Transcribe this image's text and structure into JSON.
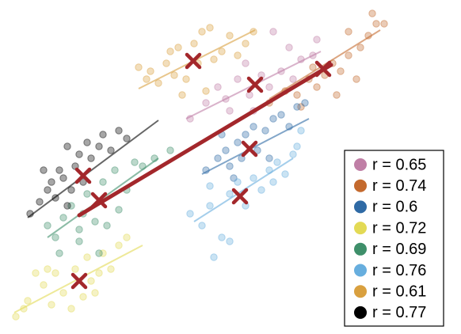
{
  "chart_data": {
    "type": "scatter",
    "xlim": [
      0,
      582
    ],
    "ylim": [
      0,
      422
    ],
    "legend": "lower right",
    "series": [
      {
        "name": "r = 0.65",
        "color": "#c07fa6",
        "x": [
          240,
          260,
          285,
          300,
          315,
          330,
          340,
          355,
          370,
          380,
          395,
          400,
          320,
          290,
          345,
          365,
          310,
          275
        ],
        "y": [
          272,
          292,
          297,
          322,
          302,
          327,
          312,
          332,
          322,
          347,
          352,
          372,
          282,
          282,
          382,
          362,
          342,
          312
        ],
        "fit_x": [
          235,
          405
        ],
        "fit_y": [
          272,
          357
        ],
        "mean_x": 322,
        "mean_y": 315
      },
      {
        "name": "r = 0.74",
        "color": "#c46a2e",
        "x": [
          340,
          360,
          375,
          390,
          400,
          410,
          420,
          430,
          440,
          455,
          465,
          475,
          485,
          470,
          380,
          425,
          450,
          395,
          440
        ],
        "y": [
          292,
          307,
          302,
          322,
          312,
          327,
          342,
          332,
          352,
          362,
          377,
          392,
          392,
          405,
          287,
          302,
          322,
          337,
          382
        ],
        "fit_x": [
          340,
          480
        ],
        "fit_y": [
          297,
          384
        ],
        "mean_x": 408,
        "mean_y": 335
      },
      {
        "name": "r = 0.6",
        "color": "#2f6aa5",
        "x": [
          260,
          275,
          285,
          290,
          300,
          305,
          310,
          320,
          325,
          335,
          345,
          355,
          365,
          375,
          385,
          295,
          280,
          340
        ],
        "y": [
          207,
          222,
          232,
          212,
          242,
          222,
          252,
          262,
          232,
          257,
          272,
          277,
          262,
          287,
          292,
          197,
          252,
          222
        ],
        "fit_x": [
          255,
          390
        ],
        "fit_y": [
          202,
          272
        ],
        "mean_x": 315,
        "mean_y": 234
      },
      {
        "name": "r = 0.72",
        "color": "#e3da55",
        "x": [
          20,
          35,
          45,
          55,
          65,
          70,
          80,
          90,
          95,
          105,
          110,
          115,
          125,
          130,
          140,
          150,
          160,
          120,
          60,
          30
        ],
        "y": [
          22,
          42,
          77,
          62,
          37,
          77,
          52,
          32,
          82,
          47,
          97,
          67,
          77,
          102,
          82,
          112,
          122,
          52,
          82,
          32
        ],
        "fit_x": [
          18,
          180
        ],
        "fit_y": [
          27,
          112
        ],
        "mean_x": 100,
        "mean_y": 67
      },
      {
        "name": "r = 0.69",
        "color": "#3e8f6a",
        "x": [
          60,
          70,
          75,
          80,
          90,
          100,
          105,
          110,
          120,
          130,
          135,
          145,
          150,
          160,
          170,
          180,
          195,
          215,
          125,
          100
        ],
        "y": [
          137,
          122,
          102,
          147,
          162,
          132,
          152,
          177,
          142,
          192,
          137,
          207,
          157,
          182,
          217,
          212,
          222,
          232,
          102,
          117
        ],
        "fit_x": [
          60,
          200
        ],
        "fit_y": [
          122,
          222
        ],
        "mean_x": 125,
        "mean_y": 169
      },
      {
        "name": "r = 0.76",
        "color": "#67aede",
        "x": [
          240,
          255,
          265,
          270,
          280,
          290,
          300,
          310,
          320,
          330,
          340,
          350,
          360,
          370,
          375,
          345,
          290,
          265,
          380
        ],
        "y": [
          152,
          137,
          162,
          97,
          122,
          177,
          192,
          162,
          197,
          182,
          207,
          217,
          202,
          227,
          237,
          192,
          117,
          187,
          257
        ],
        "fit_x": [
          245,
          370
        ],
        "fit_y": [
          142,
          222
        ],
        "mean_x": 303,
        "mean_y": 174
      },
      {
        "name": "r = 0.61",
        "color": "#d9a03f",
        "x": [
          175,
          185,
          190,
          200,
          210,
          220,
          225,
          235,
          245,
          250,
          255,
          265,
          270,
          280,
          290,
          300,
          310,
          320,
          230,
          260,
          215
        ],
        "y": [
          337,
          322,
          332,
          317,
          342,
          327,
          362,
          322,
          367,
          342,
          382,
          387,
          347,
          357,
          377,
          352,
          367,
          382,
          302,
          307,
          357
        ],
        "fit_x": [
          175,
          322
        ],
        "fit_y": [
          310,
          384
        ],
        "mean_x": 244,
        "mean_y": 345
      },
      {
        "name": "r = 0.77",
        "color": "#000000",
        "x": [
          38,
          50,
          60,
          65,
          70,
          75,
          80,
          85,
          90,
          95,
          100,
          105,
          110,
          115,
          125,
          130,
          140,
          150,
          160,
          85,
          55
        ],
        "y": [
          152,
          167,
          182,
          192,
          172,
          207,
          197,
          237,
          182,
          212,
          227,
          192,
          242,
          222,
          237,
          252,
          232,
          257,
          247,
          162,
          207
        ],
        "fit_x": [
          35,
          200
        ],
        "fit_y": [
          147,
          270
        ],
        "mean_x": 105,
        "mean_y": 200
      }
    ],
    "overall_fit": {
      "color": "#a3272b",
      "x": [
        100,
        418
      ],
      "y": [
        150,
        340
      ]
    },
    "mean_marker_color": "#a3272b"
  }
}
